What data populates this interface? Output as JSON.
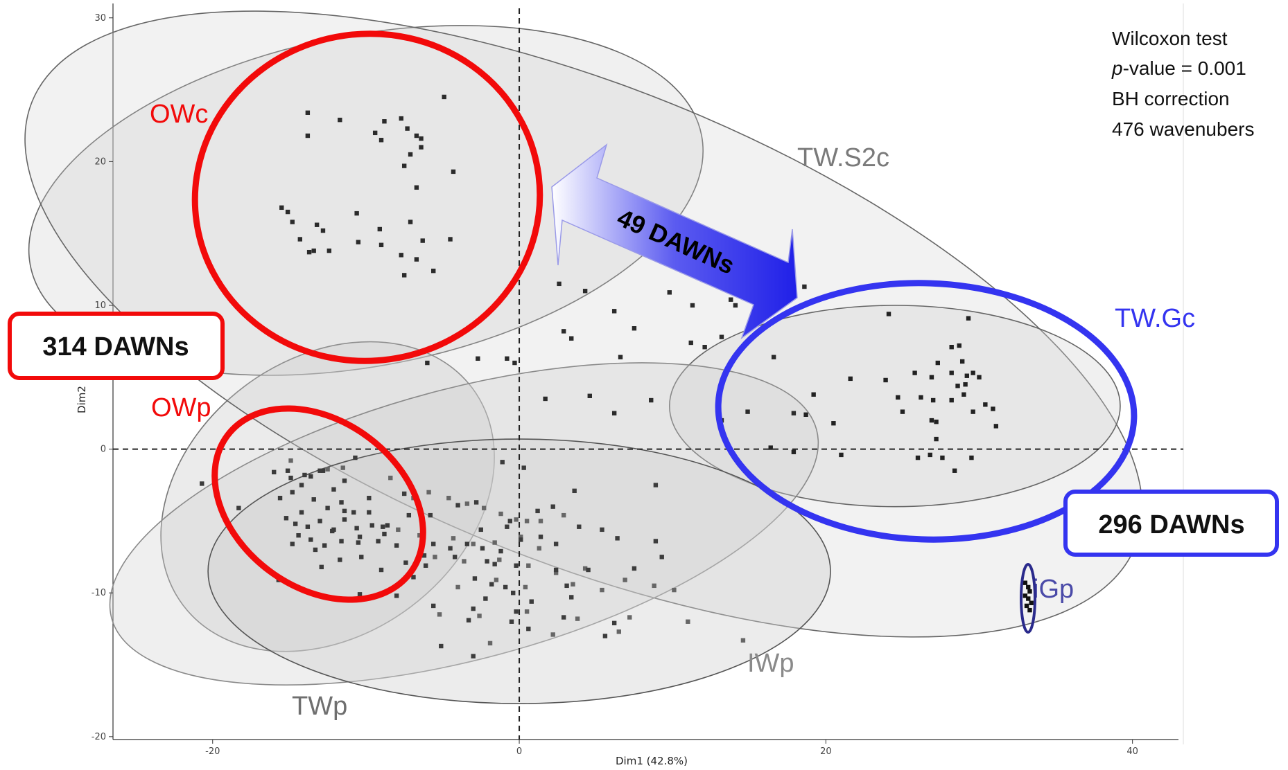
{
  "chart_data": {
    "type": "scatter",
    "xlabel": "Dim1 (42.8%)",
    "ylabel": "Dim2",
    "xlim": [
      -26.5,
      43
    ],
    "ylim": [
      -20.2,
      31
    ],
    "xticks": [
      -20,
      0,
      20,
      40
    ],
    "yticks": [
      -20,
      -10,
      0,
      10,
      20,
      30
    ],
    "tick_labels_x": [
      "-20",
      "0",
      "20",
      "40"
    ],
    "tick_labels_y": [
      "-20",
      "-10",
      "0",
      "10",
      "20",
      "30"
    ],
    "reference_lines": {
      "x": 0,
      "y": 0,
      "style": "dashed"
    },
    "grid": false,
    "annotations": {
      "stats": [
        "Wilcoxon test",
        "-value = 0.001",
        "BH correction",
        "476 wavenubers"
      ],
      "stats_italic_prefix": "p",
      "left_box": "314 DAWNs",
      "right_box": "296 DAWNs",
      "arrow_label": "49 DAWNs"
    },
    "colors": {
      "red": "#f20a0a",
      "blue": "#3434f0",
      "dark_blue": "#2a2a8c",
      "ellipse_fill": "#cfcfcf",
      "label_gray": "#7a7a7a"
    },
    "series": [
      {
        "name": "OWc",
        "label_color": "#f20a0a",
        "ellipse": {
          "cx": -10,
          "cy": 17.3,
          "rx": 22.3,
          "ry": 11.5,
          "angle": 11
        },
        "x": [
          -13.8,
          -11.7,
          -8.8,
          -7.7,
          -4.9,
          -13.8,
          -9.4,
          -7.3,
          -6.7,
          -6.4,
          -9,
          -6.4,
          -4.3,
          -7.1,
          -7.5,
          -6.7,
          -15.5,
          -15.1,
          -14.8,
          -13.2,
          -10.6,
          -12.8,
          -9.1,
          -7.1,
          -6.3,
          -14.3,
          -13.7,
          -13.4,
          -10.5,
          -9.0,
          -7.7,
          -6.7,
          -4.5,
          -12.4,
          -7.5,
          -5.6
        ],
        "y": [
          23.4,
          22.9,
          22.8,
          23.0,
          24.5,
          21.8,
          22.0,
          22.3,
          21.8,
          21.6,
          21.5,
          21.0,
          19.3,
          20.5,
          19.7,
          18.2,
          16.8,
          16.5,
          15.8,
          15.6,
          16.4,
          15.2,
          15.3,
          15.8,
          14.5,
          14.6,
          13.7,
          13.8,
          14.4,
          14.2,
          13.5,
          13.2,
          14.6,
          13.8,
          12.1,
          12.4
        ]
      },
      {
        "name": "OWp",
        "label_color": "#f20a0a",
        "ellipse": {
          "cx": -12.5,
          "cy": -3.3,
          "rx": 11.8,
          "ry": 9.6,
          "angle": 37
        },
        "x": [
          -19.8,
          -16,
          -15.1,
          -14.2,
          -13.6,
          -12.8,
          -12.1,
          -11.4,
          -15.6,
          -14.8,
          -14.2,
          -13.4,
          -12.5,
          -11.6,
          -10.8,
          -15.2,
          -14.6,
          -13.8,
          -13,
          -12.2,
          -11.4,
          -10.6,
          -9.6,
          -8.6,
          -14.4,
          -13.6,
          -12.7,
          -11.6,
          -10.4,
          -9.2,
          -8,
          -12.9,
          -11.7,
          -10.3,
          -9,
          -7.4,
          -14.8,
          -13.3,
          -12.1,
          -10.5,
          -8.8,
          -6.9
        ],
        "y": [
          -2.3,
          -1.6,
          -1.5,
          -2.5,
          -1.9,
          -1.5,
          -2.8,
          -2.2,
          -3.4,
          -3.0,
          -4.4,
          -3.5,
          -4.1,
          -3.7,
          -4.4,
          -4.8,
          -5.2,
          -5.4,
          -5.0,
          -5.7,
          -4.9,
          -5.5,
          -5.3,
          -5.3,
          -6.0,
          -6.3,
          -6.7,
          -6.4,
          -6.1,
          -6.4,
          -6.7,
          -8.2,
          -7.7,
          -7.5,
          -8.4,
          -7.9,
          -6.6,
          -7.0,
          -5.6,
          -6.5,
          -5.9,
          -8.9
        ]
      },
      {
        "name": "TW.S2c",
        "label_color": "#7a7a7a",
        "ellipse": {
          "cx": 4.2,
          "cy": 8.7,
          "rx": 38.8,
          "ry": 16.5,
          "angle": -22
        },
        "x": [
          2.6,
          4.3,
          9.8,
          13.8,
          16.3,
          18.6,
          11.3,
          14.1,
          2.9,
          7.5,
          6.2,
          13.2,
          16.6,
          11.2,
          12.1,
          3.4,
          6.6,
          -2.7,
          -0.8,
          -0.3,
          -6.0,
          4.6,
          1.7,
          6.2,
          13.2,
          14.9,
          8.6,
          17.9
        ],
        "y": [
          11.5,
          11.0,
          10.9,
          10.4,
          10.6,
          11.3,
          10.0,
          10.0,
          8.2,
          8.4,
          9.6,
          7.8,
          6.4,
          7.4,
          7.1,
          7.7,
          6.4,
          6.3,
          6.3,
          6.0,
          6.0,
          3.7,
          3.5,
          2.5,
          2.0,
          2.6,
          3.4,
          2.5
        ]
      },
      {
        "name": "TW.Gc",
        "label_color": "#3434f0",
        "ellipse": {
          "cx": 24.5,
          "cy": 3.0,
          "rx": 14.7,
          "ry": 7.0,
          "angle": 0
        },
        "x": [
          24.1,
          29.3,
          28.2,
          28.7,
          28.9,
          21.6,
          23.9,
          25.8,
          26.9,
          27.3,
          28.2,
          29.2,
          29.6,
          30.0,
          28.6,
          29.1,
          19.2,
          24.7,
          26.2,
          27.0,
          28.2,
          29.0,
          30.4,
          30.9,
          25.0,
          29.6,
          18.7,
          20.5,
          26.9,
          27.2,
          31.1,
          16.4,
          27.2,
          17.9,
          21.0,
          29.5,
          26.0,
          26.8,
          27.6,
          28.4
        ],
        "y": [
          9.4,
          9.1,
          7.1,
          7.2,
          6.1,
          4.9,
          4.8,
          5.3,
          5.0,
          6.0,
          5.3,
          5.1,
          5.3,
          5.0,
          4.4,
          4.5,
          3.8,
          3.6,
          3.6,
          3.4,
          3.4,
          3.8,
          3.1,
          2.8,
          2.6,
          2.6,
          2.4,
          1.8,
          2.0,
          1.9,
          1.6,
          0.1,
          0.7,
          -0.2,
          -0.4,
          -0.6,
          -0.6,
          -0.4,
          -0.6,
          -1.5
        ]
      },
      {
        "name": "IWp",
        "label_color": "#7a7a7a",
        "ellipse": {
          "cx": -3.6,
          "cy": -5.2,
          "rx": 23.8,
          "ry": 9.4,
          "angle": 15
        },
        "x": [
          -14.9,
          -12.5,
          -11.5,
          -8.4,
          -6.9,
          -5.9,
          -4.6,
          -3.4,
          -2.3,
          -1.2,
          -0.2,
          0.5,
          1.4,
          2.9,
          -7.9,
          -6.5,
          -4.3,
          -3.0,
          -1.6,
          0.1,
          1.3,
          -5.5,
          -3.6,
          -1.3,
          0.6,
          2.4,
          4.3,
          -4.0,
          -1.5,
          0.4,
          3.5,
          5.4,
          6.9,
          8.8,
          10.1,
          -5.2,
          -2.6,
          0.5,
          3.8,
          7.2,
          11.0,
          14.6,
          -1.9,
          2.2,
          6.5
        ],
        "y": [
          -0.8,
          -1.4,
          -1.3,
          -2.0,
          -3.4,
          -3.0,
          -3.4,
          -3.8,
          -4.1,
          -4.5,
          -4.9,
          -5.0,
          -5.0,
          -4.6,
          -5.6,
          -6.0,
          -6.2,
          -6.6,
          -6.5,
          -6.1,
          -6.9,
          -7.5,
          -7.8,
          -7.7,
          -8.1,
          -8.6,
          -8.3,
          -9.6,
          -9.1,
          -9.6,
          -9.4,
          -9.8,
          -9.1,
          -9.5,
          -9.8,
          -11.5,
          -11.6,
          -11.3,
          -11.8,
          -11.7,
          -12.0,
          -13.3,
          -13.5,
          -12.9,
          -12.7
        ]
      },
      {
        "name": "TWp",
        "label_color": "#7a7a7a",
        "ellipse": {
          "cx": 0,
          "cy": -8.5,
          "rx": 20.3,
          "ry": 9.2,
          "angle": 0
        },
        "x": [
          -20.7,
          -18.3,
          -14.9,
          -14.0,
          -13.0,
          -10.7,
          -8.9,
          -7.2,
          -5.6,
          -4.5,
          -3.4,
          -2.4,
          -1.2,
          0.1,
          1.4,
          2.4,
          -9.8,
          -7.5,
          -5.8,
          -4.0,
          -2.5,
          -0.8,
          1.2,
          2.2,
          3.9,
          5.4,
          6.4,
          8.9,
          -6.2,
          -4.2,
          -2.1,
          -0.2,
          2.4,
          4.5,
          7.5,
          9.3,
          -15.7,
          -10.4,
          -8.0,
          -5.6,
          -3.0,
          -0.2,
          2.9,
          6.2,
          -5.1,
          -3.0,
          0.6,
          5.6,
          -11.4,
          -9.8,
          -1.1,
          0.3,
          3.6,
          8.9,
          -2.8,
          -0.6,
          -1.6,
          -2.9,
          -1.8,
          -0.9,
          -0.4,
          3.1,
          3.4,
          -6.1,
          -2.2,
          0.8,
          -3.3,
          -0.5
        ],
        "y": [
          -2.4,
          -4.1,
          -2.0,
          -1.8,
          -1.5,
          -0.6,
          -5.4,
          -4.6,
          -6.6,
          -6.9,
          -6.6,
          -6.9,
          -7.1,
          -6.3,
          -6.1,
          -6.6,
          -4.4,
          -3.1,
          -4.6,
          -3.9,
          -5.6,
          -5.4,
          -4.3,
          -4.0,
          -5.4,
          -5.6,
          -6.2,
          -6.4,
          -7.4,
          -7.5,
          -7.8,
          -8.1,
          -8.4,
          -8.4,
          -8.3,
          -7.5,
          -9.1,
          -10.1,
          -10.2,
          -10.9,
          -11.1,
          -11.3,
          -11.7,
          -12.1,
          -13.7,
          -14.4,
          -12.5,
          -13.0,
          -4.3,
          -3.4,
          -0.9,
          -1.3,
          -2.9,
          -2.5,
          -3.7,
          -5.0,
          -8.0,
          -9.0,
          -9.4,
          -9.6,
          -10.0,
          -9.5,
          -10.3,
          -8.1,
          -10.4,
          -10.6,
          -11.9,
          -12.0
        ]
      },
      {
        "name": "iGp",
        "label_color": "#2a2a8c",
        "ellipse": {
          "cx": 33.2,
          "cy": -10.1,
          "rx": 0.7,
          "ry": 2.3,
          "angle": 0
        },
        "x": [
          33.0,
          33.2,
          33.3,
          33.0,
          33.2,
          33.4,
          33.1,
          33.3
        ],
        "y": [
          -9.3,
          -9.6,
          -9.9,
          -10.2,
          -10.4,
          -10.7,
          -10.9,
          -11.2
        ]
      }
    ]
  }
}
